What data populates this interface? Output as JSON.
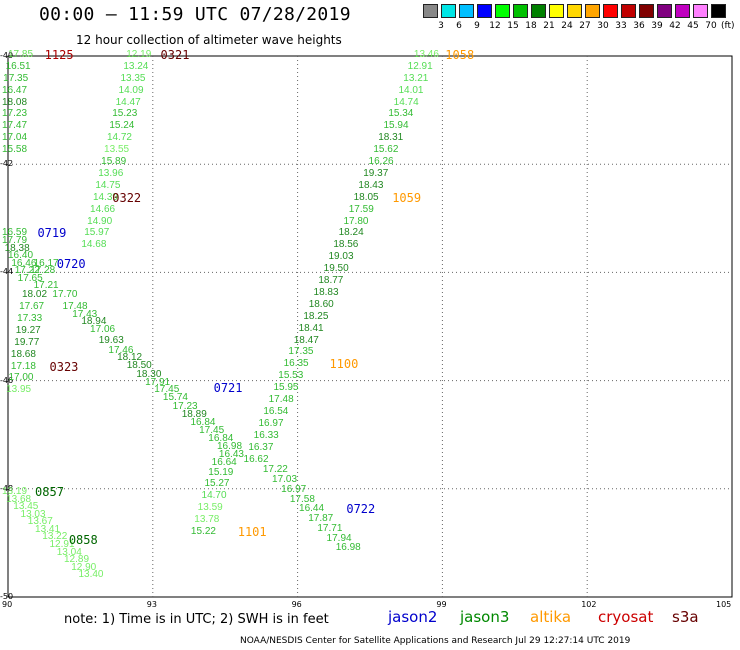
{
  "title": "00:00 – 11:59 UTC 07/28/2019",
  "subtitle": "12 hour collection of altimeter wave heights",
  "legend": {
    "unit": "(ft)",
    "bins": [
      {
        "label": "3",
        "color": "#888888"
      },
      {
        "label": "6",
        "color": "#00e5e5"
      },
      {
        "label": "9",
        "color": "#00bfff"
      },
      {
        "label": "12",
        "color": "#0000ff"
      },
      {
        "label": "15",
        "color": "#00ff00"
      },
      {
        "label": "18",
        "color": "#00c000"
      },
      {
        "label": "21",
        "color": "#008000"
      },
      {
        "label": "24",
        "color": "#ffff00"
      },
      {
        "label": "27",
        "color": "#ffd700"
      },
      {
        "label": "30",
        "color": "#ffa500"
      },
      {
        "label": "33",
        "color": "#ff0000"
      },
      {
        "label": "36",
        "color": "#c00000"
      },
      {
        "label": "39",
        "color": "#800000"
      },
      {
        "label": "42",
        "color": "#800080"
      },
      {
        "label": "45",
        "color": "#c000c0"
      },
      {
        "label": "70",
        "color": "#ff80ff"
      },
      {
        "label": "",
        "color": "#000000"
      }
    ]
  },
  "axes": {
    "lon_ticks": [
      "90",
      "93",
      "96",
      "99",
      "102",
      "105"
    ],
    "lat_ticks": [
      "-40",
      "-42",
      "-44",
      "-46",
      "-48",
      "-50"
    ]
  },
  "observations": [
    {
      "v": "17.85",
      "c": "#66dd55",
      "lon": 90.29,
      "lat": -39.98
    },
    {
      "v": "16.51",
      "c": "#33bb33",
      "lon": 90.24,
      "lat": -40.2
    },
    {
      "v": "17.35",
      "c": "#33bb33",
      "lon": 90.19,
      "lat": -40.42
    },
    {
      "v": "16.47",
      "c": "#33bb33",
      "lon": 90.15,
      "lat": -40.64
    },
    {
      "v": "18.08",
      "c": "#228822",
      "lon": 90.1,
      "lat": -40.86
    },
    {
      "v": "17.23",
      "c": "#33bb33",
      "lon": 90.06,
      "lat": -41.08
    },
    {
      "v": "17.47",
      "c": "#33bb33",
      "lon": 90.01,
      "lat": -41.3
    },
    {
      "v": "17.04",
      "c": "#33bb33",
      "lon": 89.97,
      "lat": -41.52
    },
    {
      "v": "15.58",
      "c": "#33bb33",
      "lon": 89.92,
      "lat": -41.74
    },
    {
      "v": "12.19",
      "c": "#77ee66",
      "lon": 92.74,
      "lat": -39.98
    },
    {
      "v": "13.24",
      "c": "#55dd55",
      "lon": 92.68,
      "lat": -40.2
    },
    {
      "v": "13.35",
      "c": "#55dd55",
      "lon": 92.62,
      "lat": -40.42
    },
    {
      "v": "14.09",
      "c": "#55dd55",
      "lon": 92.58,
      "lat": -40.64
    },
    {
      "v": "14.47",
      "c": "#55dd55",
      "lon": 92.52,
      "lat": -40.86
    },
    {
      "v": "15.23",
      "c": "#33bb33",
      "lon": 92.45,
      "lat": -41.08
    },
    {
      "v": "15.24",
      "c": "#33bb33",
      "lon": 92.39,
      "lat": -41.3
    },
    {
      "v": "14.72",
      "c": "#55dd55",
      "lon": 92.34,
      "lat": -41.52
    },
    {
      "v": "13.55",
      "c": "#77ee66",
      "lon": 92.28,
      "lat": -41.74
    },
    {
      "v": "15.89",
      "c": "#33bb33",
      "lon": 92.22,
      "lat": -41.96
    },
    {
      "v": "13.96",
      "c": "#55dd55",
      "lon": 92.16,
      "lat": -42.18
    },
    {
      "v": "14.75",
      "c": "#55dd55",
      "lon": 92.1,
      "lat": -42.4
    },
    {
      "v": "14.39",
      "c": "#55dd55",
      "lon": 92.05,
      "lat": -42.62
    },
    {
      "v": "14.66",
      "c": "#55dd55",
      "lon": 91.99,
      "lat": -42.84
    },
    {
      "v": "14.90",
      "c": "#55dd55",
      "lon": 91.93,
      "lat": -43.06
    },
    {
      "v": "15.97",
      "c": "#55dd55",
      "lon": 91.87,
      "lat": -43.28
    },
    {
      "v": "14.68",
      "c": "#55dd55",
      "lon": 91.81,
      "lat": -43.5
    },
    {
      "v": "16.59",
      "c": "#33bb33",
      "lon": 90.08,
      "lat": -43.28
    },
    {
      "v": "17.79",
      "c": "#33bb33",
      "lon": 90.15,
      "lat": -43.42
    },
    {
      "v": "18.38",
      "c": "#228822",
      "lon": 90.22,
      "lat": -43.56
    },
    {
      "v": "16.40",
      "c": "#33bb33",
      "lon": 90.29,
      "lat": -43.7
    },
    {
      "v": "16.46",
      "c": "#33bb33",
      "lon": 90.36,
      "lat": -43.84
    },
    {
      "v": "16.17",
      "c": "#33bb33",
      "lon": 90.82,
      "lat": -43.84
    },
    {
      "v": "17.22",
      "c": "#33bb33",
      "lon": 90.43,
      "lat": -43.98
    },
    {
      "v": "17.28",
      "c": "#33bb33",
      "lon": 90.75,
      "lat": -43.98
    },
    {
      "v": "17.65",
      "c": "#33bb33",
      "lon": 90.49,
      "lat": -44.12
    },
    {
      "v": "17.21",
      "c": "#33bb33",
      "lon": 90.82,
      "lat": -44.26
    },
    {
      "v": "18.02",
      "c": "#228822",
      "lon": 90.58,
      "lat": -44.42
    },
    {
      "v": "17.70",
      "c": "#33bb33",
      "lon": 91.21,
      "lat": -44.42
    },
    {
      "v": "17.67",
      "c": "#33bb33",
      "lon": 90.52,
      "lat": -44.64
    },
    {
      "v": "17.48",
      "c": "#33bb33",
      "lon": 91.42,
      "lat": -44.64
    },
    {
      "v": "17.33",
      "c": "#33bb33",
      "lon": 90.48,
      "lat": -44.86
    },
    {
      "v": "17.43",
      "c": "#33bb33",
      "lon": 91.62,
      "lat": -44.78
    },
    {
      "v": "18.94",
      "c": "#228822",
      "lon": 91.81,
      "lat": -44.92
    },
    {
      "v": "19.27",
      "c": "#228822",
      "lon": 90.45,
      "lat": -45.08
    },
    {
      "v": "17.06",
      "c": "#33bb33",
      "lon": 91.99,
      "lat": -45.06
    },
    {
      "v": "19.77",
      "c": "#228822",
      "lon": 90.42,
      "lat": -45.3
    },
    {
      "v": "19.63",
      "c": "#228822",
      "lon": 92.17,
      "lat": -45.26
    },
    {
      "v": "17.46",
      "c": "#33bb33",
      "lon": 92.37,
      "lat": -45.45
    },
    {
      "v": "18.68",
      "c": "#228822",
      "lon": 90.35,
      "lat": -45.52
    },
    {
      "v": "18.12",
      "c": "#228822",
      "lon": 92.55,
      "lat": -45.59
    },
    {
      "v": "17.18",
      "c": "#33bb33",
      "lon": 90.35,
      "lat": -45.74
    },
    {
      "v": "18.50",
      "c": "#228822",
      "lon": 92.75,
      "lat": -45.73
    },
    {
      "v": "17.00",
      "c": "#33bb33",
      "lon": 90.3,
      "lat": -45.96
    },
    {
      "v": "18.30",
      "c": "#228822",
      "lon": 92.95,
      "lat": -45.89
    },
    {
      "v": "13.95",
      "c": "#77ee66",
      "lon": 90.25,
      "lat": -46.18
    },
    {
      "v": "17.91",
      "c": "#33bb33",
      "lon": 93.13,
      "lat": -46.04
    },
    {
      "v": "17.45",
      "c": "#33bb33",
      "lon": 93.32,
      "lat": -46.18
    },
    {
      "v": "15.74",
      "c": "#33bb33",
      "lon": 93.5,
      "lat": -46.33
    },
    {
      "v": "17.23",
      "c": "#33bb33",
      "lon": 93.7,
      "lat": -46.48
    },
    {
      "v": "18.89",
      "c": "#228822",
      "lon": 93.89,
      "lat": -46.63
    },
    {
      "v": "16.84",
      "c": "#33bb33",
      "lon": 94.07,
      "lat": -46.79
    },
    {
      "v": "17.45",
      "c": "#33bb33",
      "lon": 94.25,
      "lat": -46.93
    },
    {
      "v": "16.84",
      "c": "#33bb33",
      "lon": 94.44,
      "lat": -47.08
    },
    {
      "v": "16.98",
      "c": "#33bb33",
      "lon": 94.62,
      "lat": -47.23
    },
    {
      "v": "16.43",
      "c": "#33bb33",
      "lon": 94.66,
      "lat": -47.37
    },
    {
      "v": "16.64",
      "c": "#33bb33",
      "lon": 94.51,
      "lat": -47.52
    },
    {
      "v": "15.19",
      "c": "#33bb33",
      "lon": 94.44,
      "lat": -47.71
    },
    {
      "v": "15.27",
      "c": "#33bb33",
      "lon": 94.36,
      "lat": -47.92
    },
    {
      "v": "14.70",
      "c": "#55dd55",
      "lon": 94.3,
      "lat": -48.14
    },
    {
      "v": "13.59",
      "c": "#77ee66",
      "lon": 94.22,
      "lat": -48.36
    },
    {
      "v": "13.78",
      "c": "#77ee66",
      "lon": 94.15,
      "lat": -48.58
    },
    {
      "v": "15.22",
      "c": "#33bb33",
      "lon": 94.08,
      "lat": -48.8
    },
    {
      "v": "13.46",
      "c": "#77ee66",
      "lon": 98.7,
      "lat": -39.98
    },
    {
      "v": "12.91",
      "c": "#55dd55",
      "lon": 98.57,
      "lat": -40.2
    },
    {
      "v": "13.21",
      "c": "#55dd55",
      "lon": 98.48,
      "lat": -40.42
    },
    {
      "v": "14.01",
      "c": "#55dd55",
      "lon": 98.38,
      "lat": -40.64
    },
    {
      "v": "14.74",
      "c": "#55dd55",
      "lon": 98.28,
      "lat": -40.86
    },
    {
      "v": "15.34",
      "c": "#33bb33",
      "lon": 98.17,
      "lat": -41.08
    },
    {
      "v": "15.94",
      "c": "#33bb33",
      "lon": 98.07,
      "lat": -41.3
    },
    {
      "v": "18.31",
      "c": "#228822",
      "lon": 97.96,
      "lat": -41.52
    },
    {
      "v": "15.62",
      "c": "#33bb33",
      "lon": 97.86,
      "lat": -41.74
    },
    {
      "v": "16.26",
      "c": "#33bb33",
      "lon": 97.76,
      "lat": -41.96
    },
    {
      "v": "19.37",
      "c": "#228822",
      "lon": 97.65,
      "lat": -42.18
    },
    {
      "v": "18.43",
      "c": "#228822",
      "lon": 97.55,
      "lat": -42.4
    },
    {
      "v": "18.05",
      "c": "#228822",
      "lon": 97.45,
      "lat": -42.62
    },
    {
      "v": "17.59",
      "c": "#33bb33",
      "lon": 97.35,
      "lat": -42.84
    },
    {
      "v": "17.80",
      "c": "#33bb33",
      "lon": 97.24,
      "lat": -43.06
    },
    {
      "v": "18.24",
      "c": "#228822",
      "lon": 97.14,
      "lat": -43.28
    },
    {
      "v": "18.56",
      "c": "#228822",
      "lon": 97.03,
      "lat": -43.5
    },
    {
      "v": "19.03",
      "c": "#228822",
      "lon": 96.93,
      "lat": -43.72
    },
    {
      "v": "19.50",
      "c": "#228822",
      "lon": 96.83,
      "lat": -43.94
    },
    {
      "v": "18.77",
      "c": "#228822",
      "lon": 96.72,
      "lat": -44.16
    },
    {
      "v": "18.83",
      "c": "#228822",
      "lon": 96.62,
      "lat": -44.38
    },
    {
      "v": "18.60",
      "c": "#228822",
      "lon": 96.52,
      "lat": -44.6
    },
    {
      "v": "18.25",
      "c": "#228822",
      "lon": 96.41,
      "lat": -44.82
    },
    {
      "v": "18.41",
      "c": "#228822",
      "lon": 96.31,
      "lat": -45.04
    },
    {
      "v": "18.47",
      "c": "#228822",
      "lon": 96.21,
      "lat": -45.26
    },
    {
      "v": "17.35",
      "c": "#33bb33",
      "lon": 96.1,
      "lat": -45.48
    },
    {
      "v": "16.35",
      "c": "#33bb33",
      "lon": 96.0,
      "lat": -45.7
    },
    {
      "v": "15.53",
      "c": "#33bb33",
      "lon": 95.89,
      "lat": -45.92
    },
    {
      "v": "15.95",
      "c": "#33bb33",
      "lon": 95.79,
      "lat": -46.14
    },
    {
      "v": "17.48",
      "c": "#33bb33",
      "lon": 95.69,
      "lat": -46.36
    },
    {
      "v": "16.54",
      "c": "#33bb33",
      "lon": 95.58,
      "lat": -46.58
    },
    {
      "v": "16.97",
      "c": "#33bb33",
      "lon": 95.48,
      "lat": -46.8
    },
    {
      "v": "16.33",
      "c": "#33bb33",
      "lon": 95.38,
      "lat": -47.02
    },
    {
      "v": "16.37",
      "c": "#33bb33",
      "lon": 95.27,
      "lat": -47.24
    },
    {
      "v": "16.62",
      "c": "#33bb33",
      "lon": 95.17,
      "lat": -47.46
    },
    {
      "v": "17.22",
      "c": "#33bb33",
      "lon": 95.57,
      "lat": -47.66
    },
    {
      "v": "17.03",
      "c": "#33bb33",
      "lon": 95.76,
      "lat": -47.84
    },
    {
      "v": "16.97",
      "c": "#33bb33",
      "lon": 95.95,
      "lat": -48.02
    },
    {
      "v": "17.58",
      "c": "#33bb33",
      "lon": 96.13,
      "lat": -48.2
    },
    {
      "v": "16.44",
      "c": "#33bb33",
      "lon": 96.32,
      "lat": -48.38
    },
    {
      "v": "17.87",
      "c": "#33bb33",
      "lon": 96.51,
      "lat": -48.56
    },
    {
      "v": "17.71",
      "c": "#33bb33",
      "lon": 96.7,
      "lat": -48.74
    },
    {
      "v": "17.94",
      "c": "#33bb33",
      "lon": 96.89,
      "lat": -48.92
    },
    {
      "v": "16.98",
      "c": "#33bb33",
      "lon": 97.08,
      "lat": -49.1
    },
    {
      "v": "13.19",
      "c": "#77ee66",
      "lon": 90.1,
      "lat": -48.06
    },
    {
      "v": "13.68",
      "c": "#77ee66",
      "lon": 90.25,
      "lat": -48.2
    },
    {
      "v": "13.45",
      "c": "#77ee66",
      "lon": 90.4,
      "lat": -48.34
    },
    {
      "v": "13.03",
      "c": "#77ee66",
      "lon": 90.55,
      "lat": -48.48
    },
    {
      "v": "13.67",
      "c": "#77ee66",
      "lon": 90.7,
      "lat": -48.62
    },
    {
      "v": "13.41",
      "c": "#77ee66",
      "lon": 90.85,
      "lat": -48.76
    },
    {
      "v": "13.22",
      "c": "#77ee66",
      "lon": 91.0,
      "lat": -48.9
    },
    {
      "v": "12.91",
      "c": "#77ee66",
      "lon": 91.15,
      "lat": -49.04
    },
    {
      "v": "13.04",
      "c": "#77ee66",
      "lon": 91.3,
      "lat": -49.18
    },
    {
      "v": "12.89",
      "c": "#77ee66",
      "lon": 91.45,
      "lat": -49.32
    },
    {
      "v": "12.90",
      "c": "#77ee66",
      "lon": 91.6,
      "lat": -49.46
    },
    {
      "v": "13.40",
      "c": "#77ee66",
      "lon": 91.75,
      "lat": -49.6
    }
  ],
  "pass_times": [
    {
      "t": "1125",
      "c": "#aa0000",
      "lon": 91.05,
      "lat": -39.98
    },
    {
      "t": "0321",
      "c": "#660000",
      "lon": 93.45,
      "lat": -39.98
    },
    {
      "t": "1058",
      "c": "#ff9900",
      "lon": 99.35,
      "lat": -39.98
    },
    {
      "t": "0322",
      "c": "#660000",
      "lon": 92.45,
      "lat": -42.62
    },
    {
      "t": "1059",
      "c": "#ff9900",
      "lon": 98.25,
      "lat": -42.62
    },
    {
      "t": "0719",
      "c": "#0000cc",
      "lon": 90.9,
      "lat": -43.28
    },
    {
      "t": "0720",
      "c": "#0000cc",
      "lon": 91.3,
      "lat": -43.84
    },
    {
      "t": "0323",
      "c": "#660000",
      "lon": 91.15,
      "lat": -45.74
    },
    {
      "t": "1100",
      "c": "#ff9900",
      "lon": 96.95,
      "lat": -45.7
    },
    {
      "t": "0721",
      "c": "#0000cc",
      "lon": 94.55,
      "lat": -46.14
    },
    {
      "t": "0857",
      "c": "#006600",
      "lon": 90.85,
      "lat": -48.06
    },
    {
      "t": "0858",
      "c": "#006600",
      "lon": 91.55,
      "lat": -48.95
    },
    {
      "t": "0722",
      "c": "#0000cc",
      "lon": 97.3,
      "lat": -48.38
    },
    {
      "t": "1101",
      "c": "#ff9900",
      "lon": 95.05,
      "lat": -48.8
    }
  ],
  "note": "note:  1) Time is in UTC; 2) SWH is in feet",
  "satellites": [
    {
      "name": "jason2",
      "color": "#0000cc"
    },
    {
      "name": "jason3",
      "color": "#008800"
    },
    {
      "name": "altika",
      "color": "#ff9900"
    },
    {
      "name": "cryosat",
      "color": "#cc0000"
    },
    {
      "name": "s3a",
      "color": "#660000"
    }
  ],
  "footer": "NOAA/NESDIS Center for Satellite Applications and Research     Jul 29 12:27:14 UTC 2019"
}
